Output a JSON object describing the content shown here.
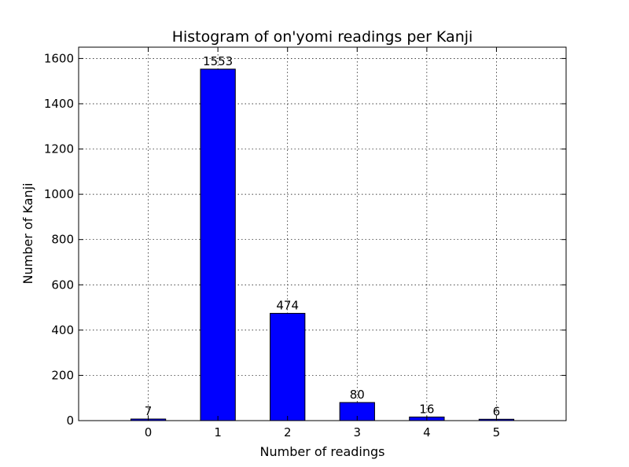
{
  "chart_data": {
    "type": "bar",
    "title": "Histogram of on'yomi readings per Kanji",
    "xlabel": "Number of readings",
    "ylabel": "Number of Kanji",
    "categories": [
      "0",
      "1",
      "2",
      "3",
      "4",
      "5"
    ],
    "values": [
      7,
      1553,
      474,
      80,
      16,
      6
    ],
    "data_labels": [
      "7",
      "1553",
      "474",
      "80",
      "16",
      "6"
    ],
    "xlim": [
      -1,
      6
    ],
    "ylim": [
      0,
      1650
    ],
    "yticks": [
      0,
      200,
      400,
      600,
      800,
      1000,
      1200,
      1400,
      1600
    ],
    "ytick_labels": [
      "0",
      "200",
      "400",
      "600",
      "800",
      "1000",
      "1200",
      "1400",
      "1600"
    ],
    "bar_width": 0.5,
    "grid": true,
    "bar_color": "#0000ff"
  }
}
